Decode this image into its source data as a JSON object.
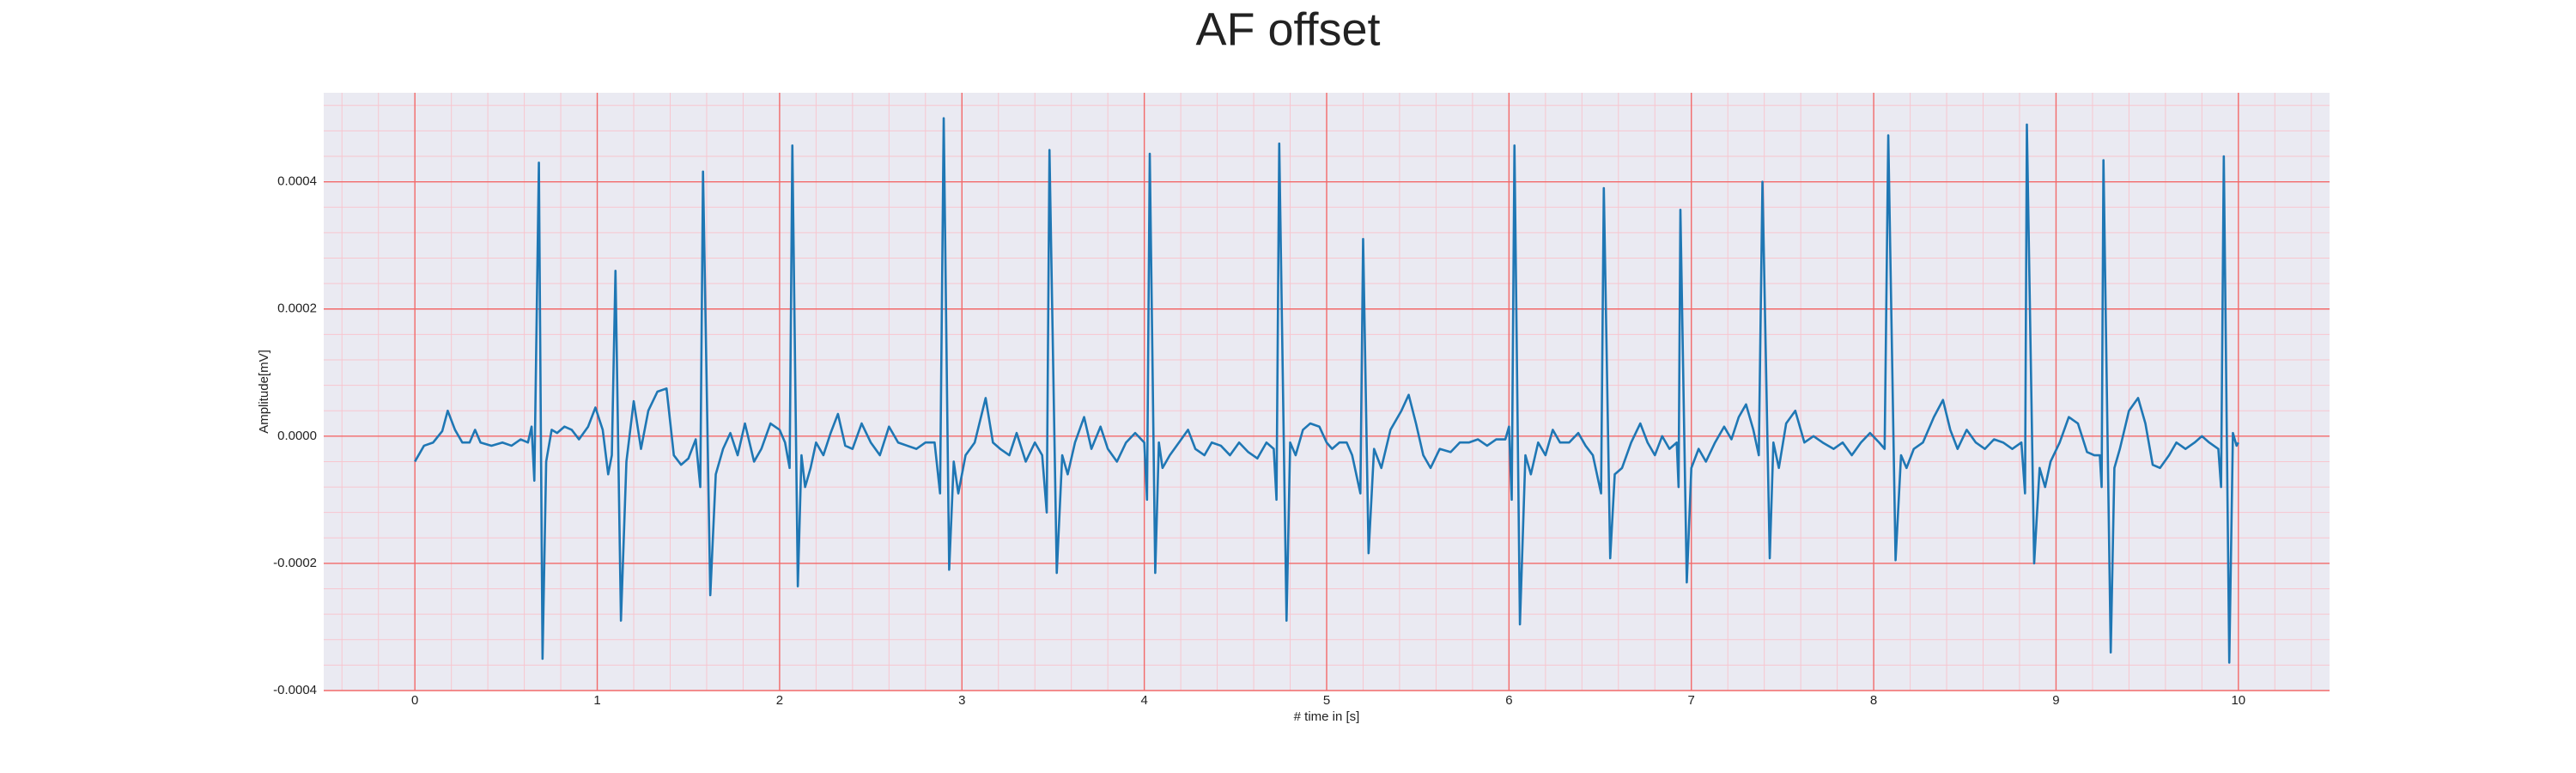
{
  "chart_data": {
    "type": "line",
    "title": "AF offset",
    "xlabel": "# time in [s]",
    "ylabel": "Amplitude[mV]",
    "color": "#1f77b4",
    "grid": true,
    "minor_grid": true,
    "xlim": [
      -0.5,
      10.5
    ],
    "ylim": [
      -0.0004,
      0.00054
    ],
    "xticks": [
      0,
      1,
      2,
      3,
      4,
      5,
      6,
      7,
      8,
      9,
      10
    ],
    "yticks": [
      -0.0004,
      -0.0002,
      {
        "value": 0,
        "label": "0.0000"
      },
      0.0002,
      0.0004
    ],
    "x": [
      0,
      0.05,
      0.1,
      0.15,
      0.18,
      0.22,
      0.26,
      0.3,
      0.33,
      0.36,
      0.42,
      0.48,
      0.53,
      0.58,
      0.62,
      0.64,
      0.655,
      0.68,
      0.7,
      0.72,
      0.75,
      0.78,
      0.82,
      0.86,
      0.9,
      0.95,
      0.99,
      1.03,
      1.06,
      1.08,
      1.1,
      1.13,
      1.16,
      1.2,
      1.24,
      1.28,
      1.33,
      1.38,
      1.42,
      1.46,
      1.5,
      1.54,
      1.565,
      1.58,
      1.62,
      1.65,
      1.69,
      1.73,
      1.77,
      1.81,
      1.86,
      1.9,
      1.95,
      2,
      2.03,
      2.055,
      2.07,
      2.1,
      2.12,
      2.14,
      2.17,
      2.2,
      2.24,
      2.28,
      2.32,
      2.36,
      2.4,
      2.45,
      2.5,
      2.55,
      2.6,
      2.65,
      2.7,
      2.75,
      2.8,
      2.85,
      2.88,
      2.9,
      2.93,
      2.955,
      2.98,
      3.02,
      3.07,
      3.13,
      3.17,
      3.21,
      3.26,
      3.3,
      3.35,
      3.4,
      3.44,
      3.465,
      3.48,
      3.52,
      3.55,
      3.58,
      3.62,
      3.67,
      3.71,
      3.76,
      3.8,
      3.85,
      3.9,
      3.95,
      4,
      4.015,
      4.03,
      4.06,
      4.08,
      4.1,
      4.14,
      4.19,
      4.24,
      4.28,
      4.33,
      4.37,
      4.42,
      4.47,
      4.52,
      4.57,
      4.62,
      4.67,
      4.71,
      4.725,
      4.74,
      4.78,
      4.8,
      4.83,
      4.87,
      4.91,
      4.96,
      5,
      5.03,
      5.07,
      5.11,
      5.14,
      5.185,
      5.2,
      5.23,
      5.26,
      5.3,
      5.35,
      5.41,
      5.45,
      5.49,
      5.53,
      5.57,
      5.62,
      5.68,
      5.73,
      5.78,
      5.83,
      5.88,
      5.93,
      5.98,
      6,
      6.015,
      6.03,
      6.06,
      6.09,
      6.12,
      6.16,
      6.2,
      6.24,
      6.28,
      6.33,
      6.38,
      6.42,
      6.46,
      6.505,
      6.52,
      6.555,
      6.58,
      6.62,
      6.67,
      6.72,
      6.76,
      6.8,
      6.84,
      6.88,
      6.92,
      6.93,
      6.94,
      6.975,
      7,
      7.04,
      7.08,
      7.13,
      7.18,
      7.22,
      7.26,
      7.3,
      7.34,
      7.37,
      7.39,
      7.43,
      7.45,
      7.48,
      7.52,
      7.57,
      7.62,
      7.67,
      7.72,
      7.78,
      7.83,
      7.88,
      7.93,
      7.98,
      8.03,
      8.06,
      8.08,
      8.12,
      8.15,
      8.18,
      8.22,
      8.27,
      8.33,
      8.38,
      8.42,
      8.46,
      8.51,
      8.56,
      8.61,
      8.66,
      8.71,
      8.76,
      8.81,
      8.83,
      8.84,
      8.88,
      8.91,
      8.94,
      8.97,
      9.02,
      9.07,
      9.12,
      9.17,
      9.21,
      9.24,
      9.25,
      9.26,
      9.3,
      9.32,
      9.35,
      9.4,
      9.45,
      9.49,
      9.53,
      9.57,
      9.62,
      9.66,
      9.71,
      9.76,
      9.8,
      9.84,
      9.89,
      9.905,
      9.92,
      9.95,
      9.97,
      9.99,
      10
    ],
    "values": [
      -4e-05,
      -1.5e-05,
      -1e-05,
      8e-06,
      4e-05,
      1e-05,
      -1e-05,
      -1e-05,
      1e-05,
      -1e-05,
      -1.5e-05,
      -1e-05,
      -1.5e-05,
      -5e-06,
      -1e-05,
      1.5e-05,
      -7e-05,
      0.00043,
      -0.00035,
      -4e-05,
      1e-05,
      5e-06,
      1.5e-05,
      1e-05,
      -5e-06,
      1.5e-05,
      4.5e-05,
      1e-05,
      -6e-05,
      -3e-05,
      0.00026,
      -0.00029,
      -4e-05,
      5.5e-05,
      -2e-05,
      4e-05,
      7e-05,
      7.5e-05,
      -3e-05,
      -4.5e-05,
      -3.5e-05,
      -5e-06,
      -8e-05,
      0.000416,
      -0.00025,
      -6e-05,
      -2e-05,
      5e-06,
      -3e-05,
      2e-05,
      -4e-05,
      -2e-05,
      2e-05,
      1e-05,
      -1e-05,
      -5e-05,
      0.000457,
      -0.000236,
      -3e-05,
      -8e-05,
      -5e-05,
      -1e-05,
      -3e-05,
      5e-06,
      3.5e-05,
      -1.5e-05,
      -2e-05,
      2e-05,
      -1e-05,
      -3e-05,
      1.5e-05,
      -1e-05,
      -1.5e-05,
      -2e-05,
      -1e-05,
      -1e-05,
      -9e-05,
      0.0005,
      -0.00021,
      -4e-05,
      -9e-05,
      -3e-05,
      -1e-05,
      6e-05,
      -1e-05,
      -2e-05,
      -3e-05,
      5e-06,
      -4e-05,
      -1e-05,
      -3e-05,
      -0.00012,
      0.00045,
      -0.000215,
      -3e-05,
      -6e-05,
      -1e-05,
      3e-05,
      -2e-05,
      1.5e-05,
      -2e-05,
      -4e-05,
      -1e-05,
      5e-06,
      -1e-05,
      -0.0001,
      0.000444,
      -0.000215,
      -1e-05,
      -5e-05,
      -3e-05,
      -1e-05,
      1e-05,
      -2e-05,
      -3e-05,
      -1e-05,
      -1.5e-05,
      -3e-05,
      -1e-05,
      -2.5e-05,
      -3.5e-05,
      -1e-05,
      -2e-05,
      -0.0001,
      0.00046,
      -0.00029,
      -1e-05,
      -3e-05,
      1e-05,
      2e-05,
      1.5e-05,
      -1e-05,
      -2e-05,
      -1e-05,
      -1e-05,
      -3e-05,
      -9e-05,
      0.00031,
      -0.000184,
      -2e-05,
      -5e-05,
      1e-05,
      4e-05,
      6.5e-05,
      2e-05,
      -3e-05,
      -5e-05,
      -2e-05,
      -2.5e-05,
      -1e-05,
      -1e-05,
      -5e-06,
      -1.5e-05,
      -5e-06,
      -5e-06,
      1.5e-05,
      -0.0001,
      0.000457,
      -0.000296,
      -3e-05,
      -6e-05,
      -1e-05,
      -3e-05,
      1e-05,
      -1e-05,
      -1e-05,
      5e-06,
      -1.5e-05,
      -3e-05,
      -9e-05,
      0.00039,
      -0.000192,
      -6e-05,
      -5e-05,
      -1e-05,
      2e-05,
      -1e-05,
      -3e-05,
      0,
      -2e-05,
      -1e-05,
      -8e-05,
      0.000356,
      -0.00023,
      -5e-05,
      -2e-05,
      -4e-05,
      -1e-05,
      1.5e-05,
      -5e-06,
      3e-05,
      5e-05,
      1e-05,
      -3e-05,
      0.0004,
      -0.000192,
      -1e-05,
      -5e-05,
      2e-05,
      4e-05,
      -1e-05,
      0,
      -1e-05,
      -2e-05,
      -1e-05,
      -3e-05,
      -1e-05,
      5e-06,
      -1e-05,
      -2e-05,
      0.000473,
      -0.000195,
      -3e-05,
      -5e-05,
      -2e-05,
      -1e-05,
      3e-05,
      5.7e-05,
      1e-05,
      -2e-05,
      1e-05,
      -1e-05,
      -2e-05,
      -5e-06,
      -1e-05,
      -2e-05,
      -1e-05,
      -9e-05,
      0.00049,
      -0.0002,
      -5e-05,
      -8e-05,
      -4e-05,
      -1e-05,
      3e-05,
      2e-05,
      -2.5e-05,
      -3e-05,
      -3e-05,
      -8e-05,
      0.000434,
      -0.00034,
      -5e-05,
      -2e-05,
      4e-05,
      6e-05,
      2e-05,
      -4.5e-05,
      -5e-05,
      -3e-05,
      -1e-05,
      -2e-05,
      -1e-05,
      0,
      -1e-05,
      -2e-05,
      -8e-05,
      0.00044,
      -0.000356,
      5e-06,
      -1.5e-05,
      -1e-05
    ]
  }
}
